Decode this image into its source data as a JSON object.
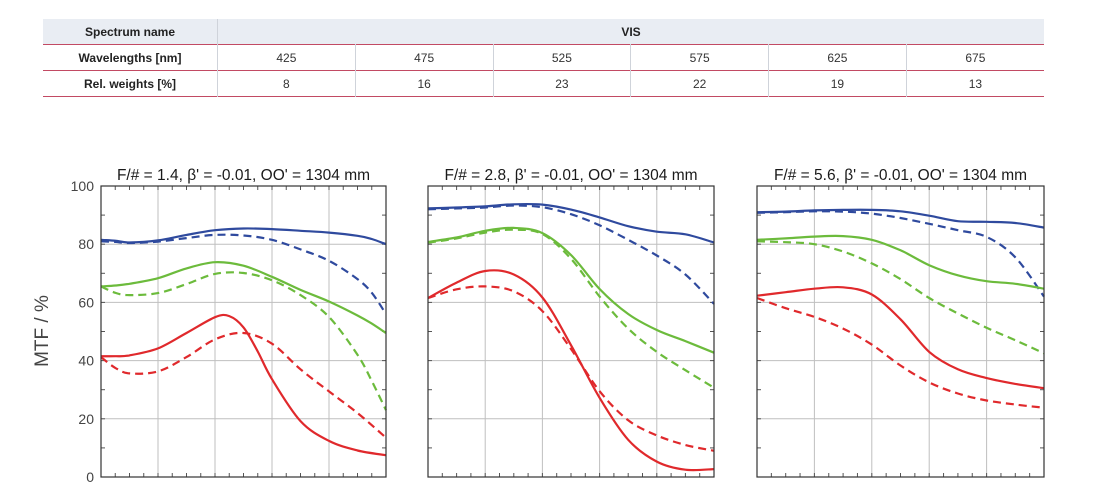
{
  "spectrum_table": {
    "name_label": "Spectrum name",
    "name_value": "VIS",
    "wavelengths_label": "Wavelengths [nm]",
    "wavelengths": [
      "425",
      "475",
      "525",
      "575",
      "625",
      "675"
    ],
    "weights_label": "Rel. weights [%]",
    "weights": [
      "8",
      "16",
      "23",
      "22",
      "19",
      "13"
    ]
  },
  "colors": {
    "blue": "#2f4a9e",
    "green": "#6cbb3c",
    "red": "#e0292c",
    "grid": "#bfbfbf",
    "table_rule": "#c24a63"
  },
  "chart_data": [
    {
      "type": "line",
      "title": "F/# = 1.4, β' = -0.01, OO' = 1304 mm",
      "ylabel": "MTF / %",
      "yticks": [
        "100",
        "80",
        "60",
        "40",
        "20",
        "0"
      ],
      "ylim": [
        0,
        100
      ],
      "xlim": [
        0,
        1
      ],
      "grid": true,
      "series": [
        {
          "color": "blue",
          "style": "solid",
          "x": [
            0,
            0.05,
            0.1,
            0.2,
            0.3,
            0.4,
            0.5,
            0.6,
            0.7,
            0.8,
            0.9,
            0.95,
            1
          ],
          "y": [
            81.5,
            81.2,
            80.6,
            81.3,
            83.2,
            84.8,
            85.4,
            85.2,
            84.6,
            84,
            82.9,
            81.8,
            80
          ]
        },
        {
          "color": "blue",
          "style": "dash",
          "x": [
            0,
            0.05,
            0.1,
            0.2,
            0.3,
            0.4,
            0.5,
            0.6,
            0.7,
            0.8,
            0.9,
            0.95,
            1
          ],
          "y": [
            81,
            80.8,
            80.4,
            80.9,
            82.1,
            83.2,
            83,
            81.5,
            78.2,
            74.3,
            68,
            63.3,
            56
          ]
        },
        {
          "color": "green",
          "style": "solid",
          "x": [
            0,
            0.05,
            0.1,
            0.2,
            0.3,
            0.4,
            0.5,
            0.6,
            0.7,
            0.8,
            0.9,
            0.95,
            1
          ],
          "y": [
            65.5,
            65.8,
            66.4,
            68.3,
            71.7,
            73.8,
            72.6,
            68.8,
            64.3,
            60.3,
            55.5,
            52.7,
            49.5
          ]
        },
        {
          "color": "green",
          "style": "dash",
          "x": [
            0,
            0.05,
            0.1,
            0.2,
            0.3,
            0.4,
            0.5,
            0.6,
            0.7,
            0.8,
            0.9,
            0.95,
            1
          ],
          "y": [
            65.5,
            63.3,
            62.5,
            63.2,
            66.3,
            69.8,
            70.1,
            67.6,
            62.5,
            55,
            42,
            33,
            23
          ]
        },
        {
          "color": "red",
          "style": "solid",
          "x": [
            0,
            0.05,
            0.1,
            0.2,
            0.3,
            0.4,
            0.45,
            0.5,
            0.55,
            0.6,
            0.7,
            0.8,
            0.9,
            1
          ],
          "y": [
            41.5,
            41.5,
            41.8,
            44.2,
            49.5,
            54.9,
            55.3,
            51.4,
            43.1,
            33.6,
            19.2,
            12.4,
            9.1,
            7.5
          ]
        },
        {
          "color": "red",
          "style": "dash",
          "x": [
            0,
            0.05,
            0.1,
            0.2,
            0.3,
            0.4,
            0.5,
            0.6,
            0.7,
            0.8,
            0.9,
            1
          ],
          "y": [
            41.2,
            37.5,
            35.6,
            36.3,
            41.2,
            47.3,
            49.5,
            45.8,
            37,
            29.4,
            22,
            13.5
          ]
        }
      ]
    },
    {
      "type": "line",
      "title": "F/# = 2.8, β' = -0.01, OO' = 1304 mm",
      "ylim": [
        0,
        100
      ],
      "xlim": [
        0,
        1
      ],
      "grid": true,
      "series": [
        {
          "color": "blue",
          "style": "solid",
          "x": [
            0,
            0.1,
            0.2,
            0.3,
            0.4,
            0.5,
            0.6,
            0.7,
            0.8,
            0.9,
            1
          ],
          "y": [
            92.3,
            92.6,
            93,
            93.7,
            93.6,
            91.9,
            89.2,
            86.2,
            84.3,
            83.4,
            80.6
          ]
        },
        {
          "color": "blue",
          "style": "dash",
          "x": [
            0,
            0.1,
            0.2,
            0.3,
            0.4,
            0.5,
            0.6,
            0.7,
            0.8,
            0.9,
            1
          ],
          "y": [
            92,
            92.3,
            92.6,
            93.3,
            92.7,
            90.3,
            86.5,
            81.5,
            76.1,
            69.6,
            59.5
          ]
        },
        {
          "color": "green",
          "style": "solid",
          "x": [
            0,
            0.1,
            0.2,
            0.3,
            0.4,
            0.5,
            0.6,
            0.7,
            0.8,
            0.9,
            1
          ],
          "y": [
            80.8,
            82.3,
            84.6,
            85.6,
            83.8,
            76.3,
            64.6,
            56,
            50.5,
            46.7,
            42.7
          ]
        },
        {
          "color": "green",
          "style": "dash",
          "x": [
            0,
            0.1,
            0.2,
            0.3,
            0.4,
            0.5,
            0.6,
            0.7,
            0.8,
            0.9,
            1
          ],
          "y": [
            80.5,
            82,
            84,
            85,
            83.5,
            75,
            62,
            51,
            43,
            36.7,
            30.7
          ]
        },
        {
          "color": "red",
          "style": "solid",
          "x": [
            0,
            0.1,
            0.2,
            0.3,
            0.4,
            0.5,
            0.6,
            0.7,
            0.8,
            0.9,
            1
          ],
          "y": [
            61.5,
            66.8,
            70.8,
            69.6,
            61.7,
            45.3,
            27.2,
            12.8,
            5.3,
            2.5,
            2.7
          ]
        },
        {
          "color": "red",
          "style": "dash",
          "x": [
            0,
            0.1,
            0.2,
            0.3,
            0.4,
            0.5,
            0.6,
            0.7,
            0.8,
            0.9,
            1
          ],
          "y": [
            61.5,
            64.5,
            65.5,
            63.8,
            57,
            44,
            29.5,
            19.5,
            14.3,
            11,
            9
          ]
        }
      ]
    },
    {
      "type": "line",
      "title": "F/# = 5.6, β' = -0.01, OO' = 1304 mm",
      "ylim": [
        0,
        100
      ],
      "xlim": [
        0,
        1
      ],
      "grid": true,
      "series": [
        {
          "color": "blue",
          "style": "solid",
          "x": [
            0,
            0.1,
            0.2,
            0.3,
            0.4,
            0.5,
            0.6,
            0.7,
            0.8,
            0.9,
            1
          ],
          "y": [
            91,
            91.2,
            91.6,
            91.8,
            91.8,
            91.3,
            89.8,
            87.9,
            87.7,
            87.3,
            85.7
          ]
        },
        {
          "color": "blue",
          "style": "dash",
          "x": [
            0,
            0.1,
            0.2,
            0.3,
            0.4,
            0.5,
            0.6,
            0.7,
            0.8,
            0.9,
            1
          ],
          "y": [
            90.8,
            91,
            91.3,
            91.2,
            90.5,
            89,
            87,
            84.8,
            82.5,
            75.5,
            62
          ]
        },
        {
          "color": "green",
          "style": "solid",
          "x": [
            0,
            0.1,
            0.2,
            0.3,
            0.4,
            0.5,
            0.6,
            0.7,
            0.8,
            0.9,
            1
          ],
          "y": [
            81.5,
            82,
            82.6,
            82.8,
            81.5,
            77.9,
            72.8,
            69.3,
            67.3,
            66.4,
            64.7
          ]
        },
        {
          "color": "green",
          "style": "dash",
          "x": [
            0,
            0.1,
            0.2,
            0.3,
            0.4,
            0.5,
            0.6,
            0.7,
            0.8,
            0.9,
            1
          ],
          "y": [
            81,
            80.7,
            80,
            77.5,
            73.4,
            68,
            61.5,
            56.2,
            51.3,
            47,
            42.5
          ]
        },
        {
          "color": "red",
          "style": "solid",
          "x": [
            0,
            0.1,
            0.2,
            0.3,
            0.4,
            0.5,
            0.6,
            0.7,
            0.8,
            0.9,
            1
          ],
          "y": [
            62.3,
            63.5,
            64.7,
            65.2,
            62.7,
            54.2,
            43,
            37,
            34,
            32,
            30.5
          ]
        },
        {
          "color": "red",
          "style": "dash",
          "x": [
            0,
            0.1,
            0.2,
            0.3,
            0.4,
            0.5,
            0.6,
            0.7,
            0.8,
            0.9,
            1
          ],
          "y": [
            61.5,
            58,
            55,
            51,
            45.5,
            38.3,
            32.5,
            28.7,
            26.3,
            24.9,
            23.8
          ]
        }
      ]
    }
  ]
}
